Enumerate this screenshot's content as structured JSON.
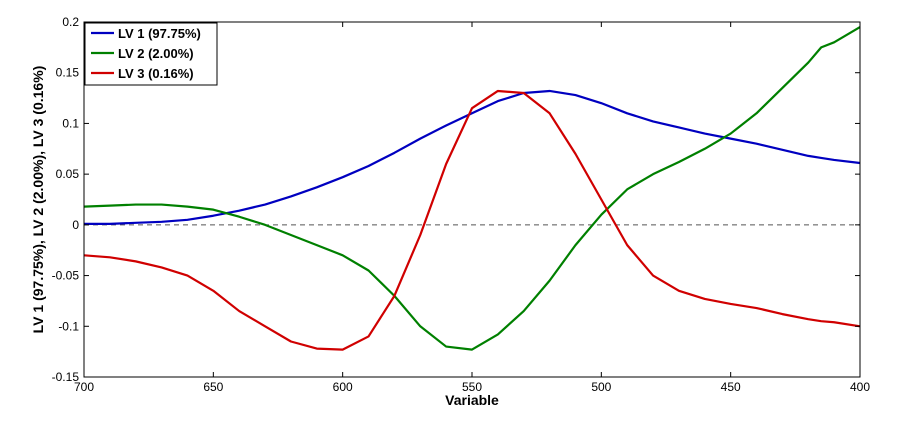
{
  "chart_data": {
    "type": "line",
    "title": "",
    "xlabel": "Variable",
    "ylabel": "LV 1 (97.75%), LV 2 (2.00%), LV 3 (0.16%)",
    "xlim": [
      700,
      400
    ],
    "x_reversed": true,
    "ylim": [
      -0.15,
      0.2
    ],
    "xticks": [
      "700",
      "650",
      "600",
      "550",
      "500",
      "450",
      "400"
    ],
    "yticks": [
      "0.2",
      "0.15",
      "0.1",
      "0.05",
      "0",
      "-0.05",
      "-0.1",
      "-0.15"
    ],
    "grid": false,
    "legend_position": "top-left",
    "reference_line": {
      "y": 0,
      "style": "dashed",
      "color": "#555555"
    },
    "x": [
      700,
      690,
      680,
      670,
      660,
      650,
      640,
      630,
      620,
      610,
      600,
      590,
      580,
      570,
      560,
      550,
      540,
      530,
      520,
      510,
      500,
      490,
      480,
      470,
      460,
      450,
      440,
      430,
      420,
      415,
      410,
      400
    ],
    "series": [
      {
        "name": "LV 1 (97.75%)",
        "color": "#0000c0",
        "values": [
          0.001,
          0.001,
          0.002,
          0.003,
          0.005,
          0.009,
          0.014,
          0.02,
          0.028,
          0.037,
          0.047,
          0.058,
          0.071,
          0.085,
          0.098,
          0.11,
          0.122,
          0.13,
          0.132,
          0.128,
          0.12,
          0.11,
          0.102,
          0.096,
          0.09,
          0.085,
          0.08,
          0.074,
          0.068,
          0.066,
          0.064,
          0.061
        ]
      },
      {
        "name": "LV 2 (2.00%)",
        "color": "#008000",
        "values": [
          0.018,
          0.019,
          0.02,
          0.02,
          0.018,
          0.015,
          0.008,
          0.0,
          -0.01,
          -0.02,
          -0.03,
          -0.045,
          -0.07,
          -0.1,
          -0.12,
          -0.123,
          -0.108,
          -0.085,
          -0.055,
          -0.02,
          0.01,
          0.035,
          0.05,
          0.062,
          0.075,
          0.09,
          0.11,
          0.135,
          0.16,
          0.175,
          0.18,
          0.195
        ]
      },
      {
        "name": "LV 3 (0.16%)",
        "color": "#d00000",
        "values": [
          -0.03,
          -0.032,
          -0.036,
          -0.042,
          -0.05,
          -0.065,
          -0.085,
          -0.1,
          -0.115,
          -0.122,
          -0.123,
          -0.11,
          -0.07,
          -0.01,
          0.06,
          0.115,
          0.132,
          0.13,
          0.11,
          0.07,
          0.025,
          -0.02,
          -0.05,
          -0.065,
          -0.073,
          -0.078,
          -0.082,
          -0.088,
          -0.093,
          -0.095,
          -0.096,
          -0.1
        ]
      }
    ]
  }
}
